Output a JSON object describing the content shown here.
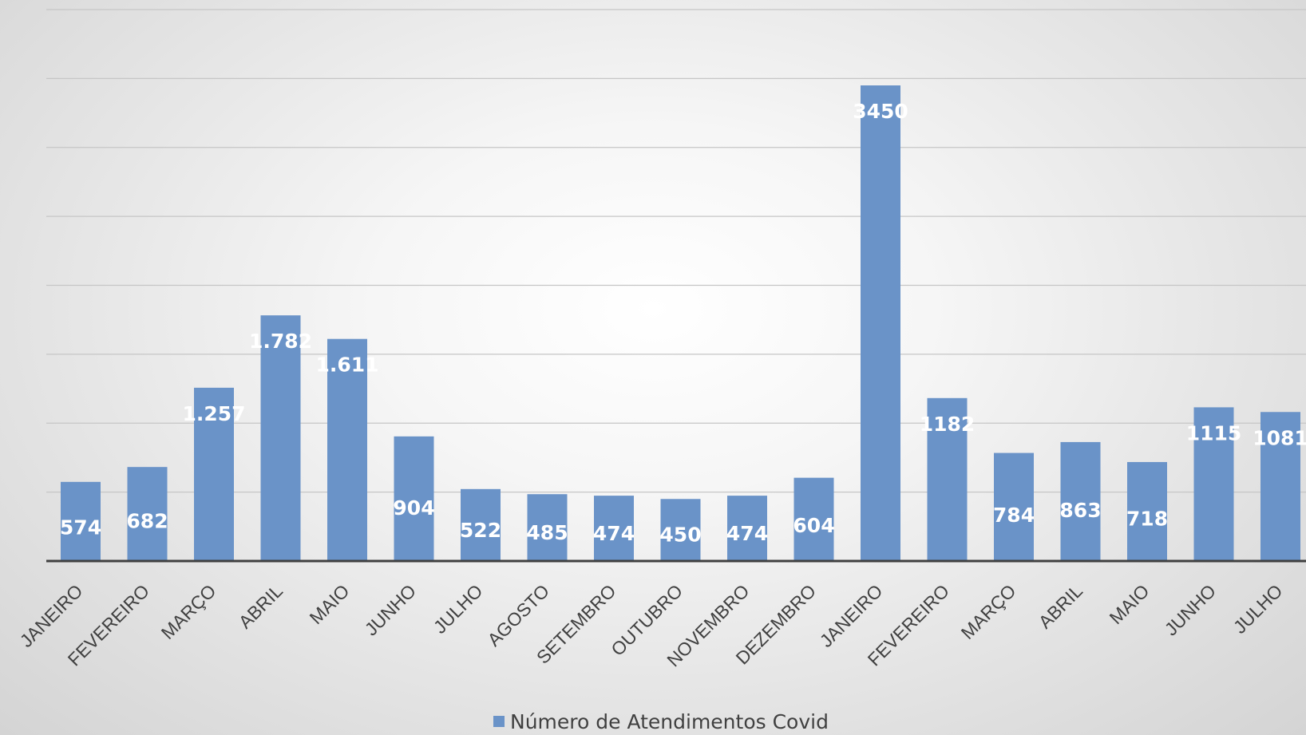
{
  "chart_data": {
    "type": "bar",
    "categories": [
      "JANEIRO",
      "FEVEREIRO",
      "MARÇO",
      "ABRIL",
      "MAIO",
      "JUNHO",
      "JULHO",
      "AGOSTO",
      "SETEMBRO",
      "OUTUBRO",
      "NOVEMBRO",
      "DEZEMBRO",
      "JANEIRO",
      "FEVEREIRO",
      "MARÇO",
      "ABRIL",
      "MAIO",
      "JUNHO",
      "JULHO"
    ],
    "series": [
      {
        "name": "Número de Atendimentos Covid",
        "values": [
          574,
          682,
          1257,
          1782,
          1611,
          904,
          522,
          485,
          474,
          450,
          474,
          604,
          3450,
          1182,
          784,
          863,
          718,
          1115,
          1081
        ],
        "labels": [
          "574",
          "682",
          "1.257",
          "1.782",
          "1.611",
          "904",
          "522",
          "485",
          "474",
          "450",
          "474",
          "604",
          "3450",
          "1182",
          "784",
          "863",
          "718",
          "1115",
          "1081"
        ]
      }
    ],
    "ylim": [
      0,
      4000
    ],
    "yticks": [
      0,
      500,
      1000,
      1500,
      2000,
      2500,
      3000,
      3500,
      4000
    ],
    "grid": true,
    "legend_position": "bottom",
    "colors": {
      "bar": "#6a93c8"
    }
  }
}
